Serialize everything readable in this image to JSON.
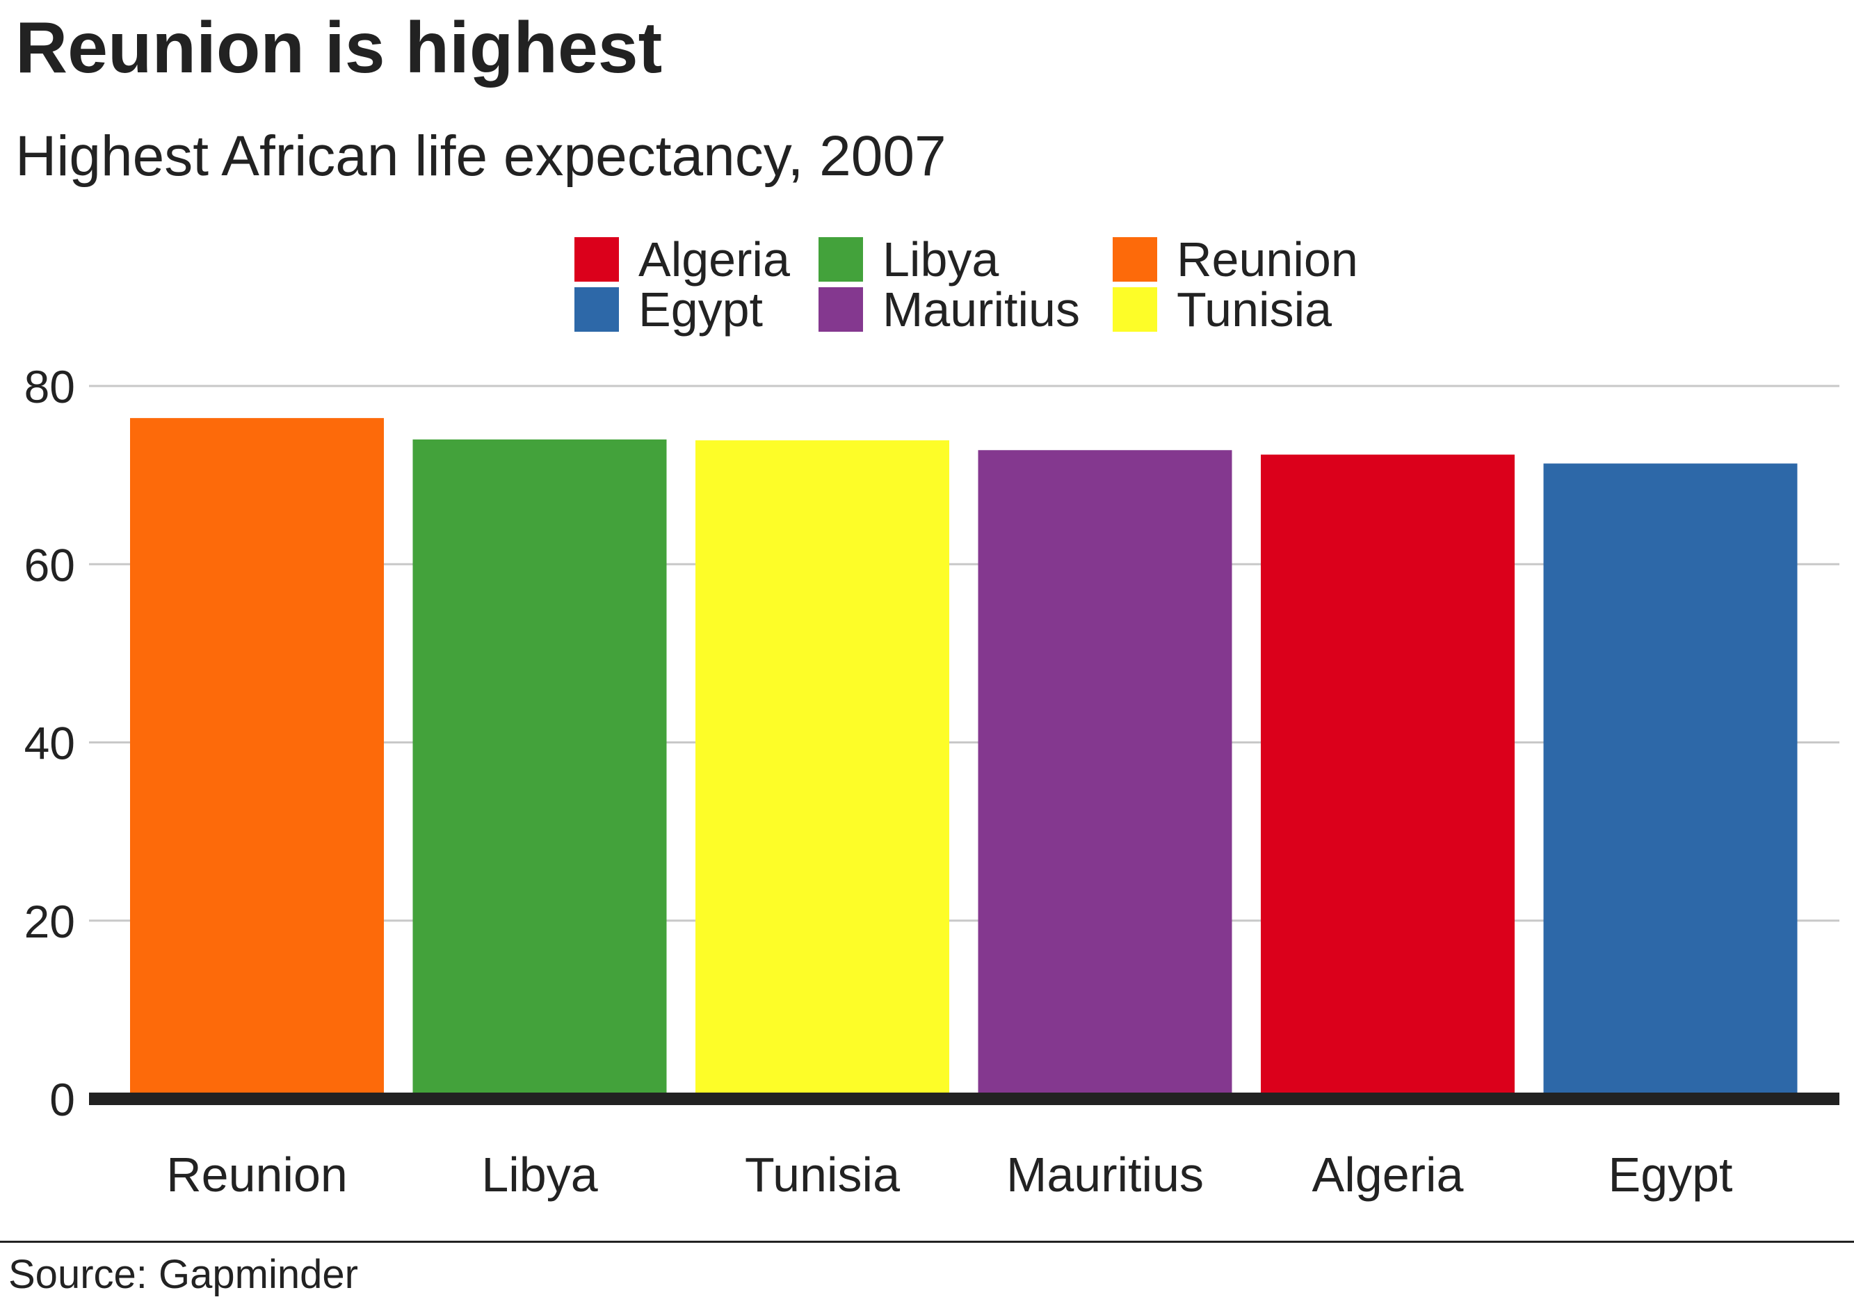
{
  "title": "Reunion is highest",
  "subtitle": "Highest African life expectancy, 2007",
  "source": "Source: Gapminder",
  "legend": [
    {
      "label": "Algeria",
      "color": "#db001b"
    },
    {
      "label": "Libya",
      "color": "#43a23b"
    },
    {
      "label": "Reunion",
      "color": "#fd6a0a"
    },
    {
      "label": "Egypt",
      "color": "#2d68a8"
    },
    {
      "label": "Mauritius",
      "color": "#84388f"
    },
    {
      "label": "Tunisia",
      "color": "#fdfd28"
    }
  ],
  "chart_data": {
    "type": "bar",
    "title": "Reunion is highest",
    "subtitle": "Highest African life expectancy, 2007",
    "xlabel": "",
    "ylabel": "",
    "categories": [
      "Reunion",
      "Libya",
      "Tunisia",
      "Mauritius",
      "Algeria",
      "Egypt"
    ],
    "values": [
      76.4,
      74.0,
      73.9,
      72.8,
      72.3,
      71.3
    ],
    "colors": [
      "#fd6a0a",
      "#43a23b",
      "#fdfd28",
      "#84388f",
      "#db001b",
      "#2d68a8"
    ],
    "ylim": [
      0,
      80
    ],
    "yticks": [
      0,
      20,
      40,
      60,
      80
    ],
    "grid": true,
    "legend_position": "top-center"
  }
}
